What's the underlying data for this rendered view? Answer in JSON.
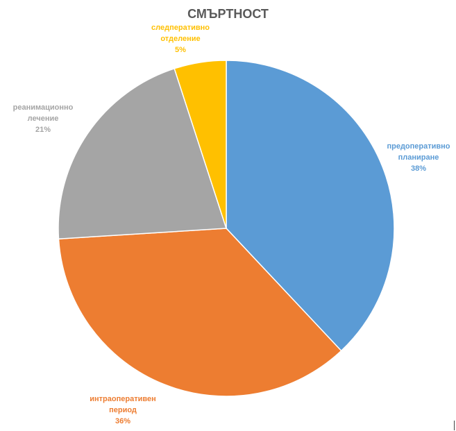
{
  "chart_data": {
    "type": "pie",
    "title": "СМЪРТНОСТ",
    "slices": [
      {
        "label_lines": [
          "предоперативно",
          "планиране"
        ],
        "percent_label": "38%",
        "value": 38,
        "color": "#5B9BD5"
      },
      {
        "label_lines": [
          "интраоперативен",
          "период"
        ],
        "percent_label": "36%",
        "value": 36,
        "color": "#ED7D31"
      },
      {
        "label_lines": [
          "реанимационно",
          "лечение"
        ],
        "percent_label": "21%",
        "value": 21,
        "color": "#A5A5A5"
      },
      {
        "label_lines": [
          "следперативно",
          "отделение"
        ],
        "percent_label": "5%",
        "value": 5,
        "color": "#FFC000"
      }
    ],
    "start_angle_deg": 0,
    "direction": "clockwise",
    "legend": "none"
  }
}
